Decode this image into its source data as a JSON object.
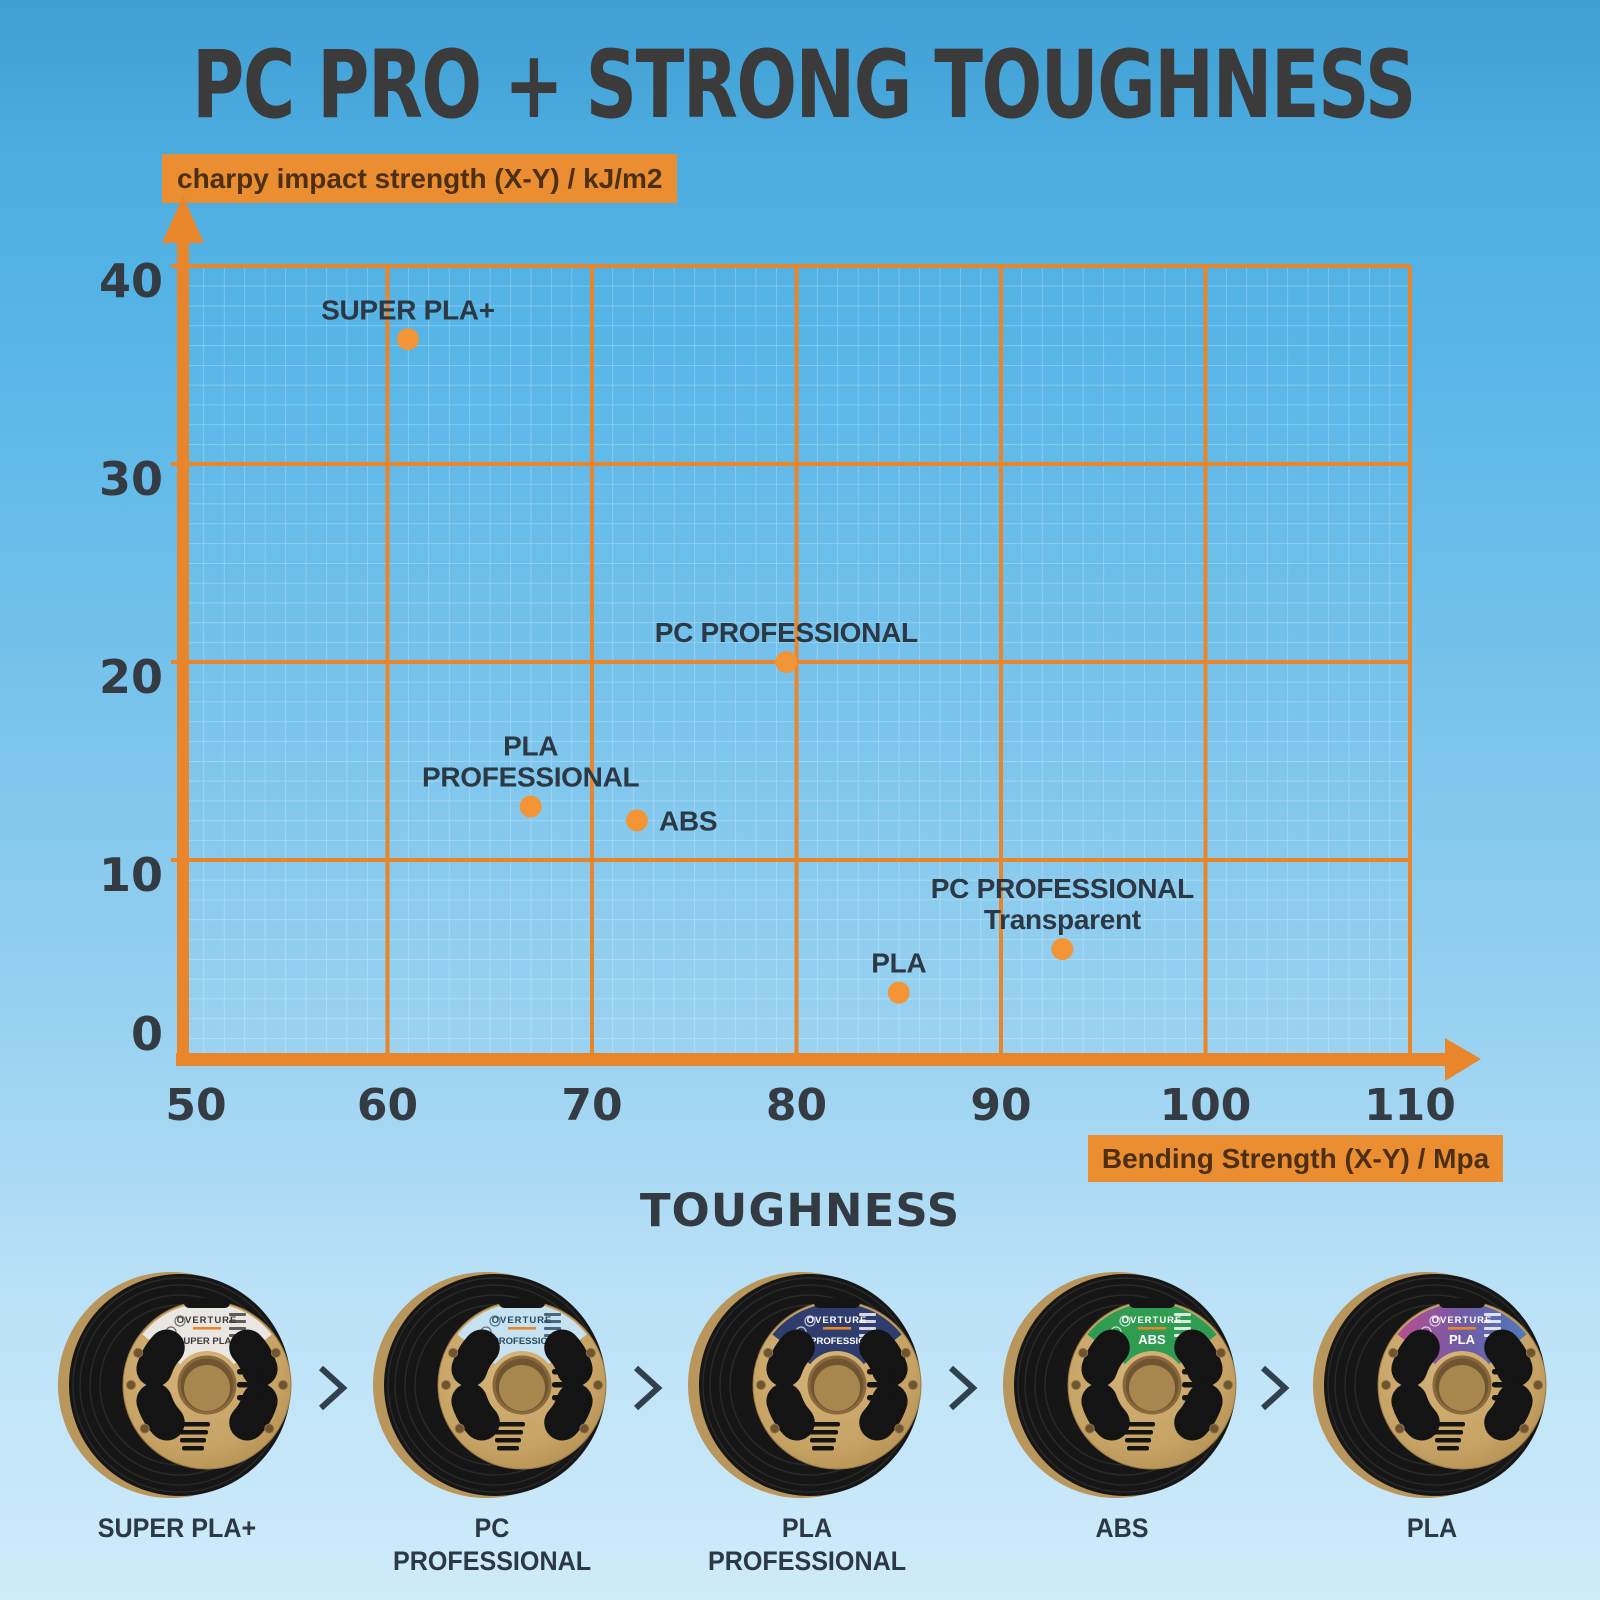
{
  "title": "PC PRO + STRONG TOUGHNESS",
  "toughness_heading": "TOUGHNESS",
  "separator_glyph": ">",
  "colors": {
    "accent_orange": "#E9862C",
    "box_orange": "#EB8D31",
    "point_orange": "#F39536",
    "title_text": "#3B3B3B",
    "tick_text": "#343B42",
    "point_label_text": "#2C3844",
    "axis_box_text": "#4D3014",
    "caption_text": "#2C3845",
    "minor_grid": "rgba(255,255,255,0.38)",
    "background_top": "#3F9FD4",
    "background_bottom": "#CEEBFA",
    "cardboard": "#C8A468",
    "filament_black": "#161616"
  },
  "chart_data": {
    "type": "scatter",
    "title": "PC PRO + STRONG TOUGHNESS",
    "x_axis_label": "Bending Strength (X-Y) / Mpa",
    "y_axis_label": "charpy impact strength (X-Y) / kJ/m2",
    "xlabel": "Bending Strength (X-Y) / Mpa",
    "ylabel": "charpy impact strength (X-Y) / kJ/m2",
    "xlim": [
      50,
      110
    ],
    "ylim": [
      0,
      40
    ],
    "x_ticks": [
      50,
      60,
      70,
      80,
      90,
      100,
      110
    ],
    "y_ticks": [
      0,
      10,
      20,
      30,
      40
    ],
    "grid": {
      "major_step": 10,
      "minor_step": 1,
      "legend": "none"
    },
    "points": [
      {
        "name": "SUPER PLA+",
        "x": 61,
        "y": 36.3,
        "label_lines": [
          "SUPER PLA+"
        ],
        "label_pos": "above"
      },
      {
        "name": "PC PROFESSIONAL",
        "x": 79.5,
        "y": 20,
        "label_lines": [
          "PC PROFESSIONAL"
        ],
        "label_pos": "above"
      },
      {
        "name": "PLA PROFESSIONAL",
        "x": 67,
        "y": 12.7,
        "label_lines": [
          "PLA",
          "PROFESSIONAL"
        ],
        "label_pos": "above"
      },
      {
        "name": "ABS",
        "x": 72.2,
        "y": 12,
        "label_lines": [
          "ABS"
        ],
        "label_pos": "right"
      },
      {
        "name": "PC PROFESSIONAL Transparent",
        "x": 93,
        "y": 5.5,
        "label_lines": [
          "PC PROFESSIONAL",
          "Transparent"
        ],
        "label_pos": "above"
      },
      {
        "name": "PLA",
        "x": 85,
        "y": 3.3,
        "label_lines": [
          "PLA"
        ],
        "label_pos": "above"
      }
    ]
  },
  "spools": [
    {
      "caption_lines": [
        "SUPER PLA+"
      ],
      "brand": "OVERTURE",
      "band_label": "SUPER PLA+",
      "band_colors": [
        "#EAE7E2"
      ],
      "band_text_color": "#3A3A3A"
    },
    {
      "caption_lines": [
        "PC",
        "PROFESSIONAL"
      ],
      "brand": "OVERTURE",
      "band_label": "PC PROFESSIONAL",
      "band_colors": [
        "#C6E2F1"
      ],
      "band_text_color": "#2B4A60"
    },
    {
      "caption_lines": [
        "PLA",
        "PROFESSIONAL"
      ],
      "brand": "OVERTURE",
      "band_label": "PLA PROFESSIONAL",
      "band_colors": [
        "#2E3D6E"
      ],
      "band_text_color": "#FFFFFF"
    },
    {
      "caption_lines": [
        "ABS"
      ],
      "brand": "OVERTURE",
      "band_label": "ABS",
      "band_colors": [
        "#2F9C52"
      ],
      "band_text_color": "#FFFFFF"
    },
    {
      "caption_lines": [
        "PLA"
      ],
      "brand": "OVERTURE",
      "band_label": "PLA",
      "band_colors": [
        "#BA4E92",
        "#705BA5",
        "#4E79B9"
      ],
      "band_text_color": "#FFFFFF"
    }
  ]
}
